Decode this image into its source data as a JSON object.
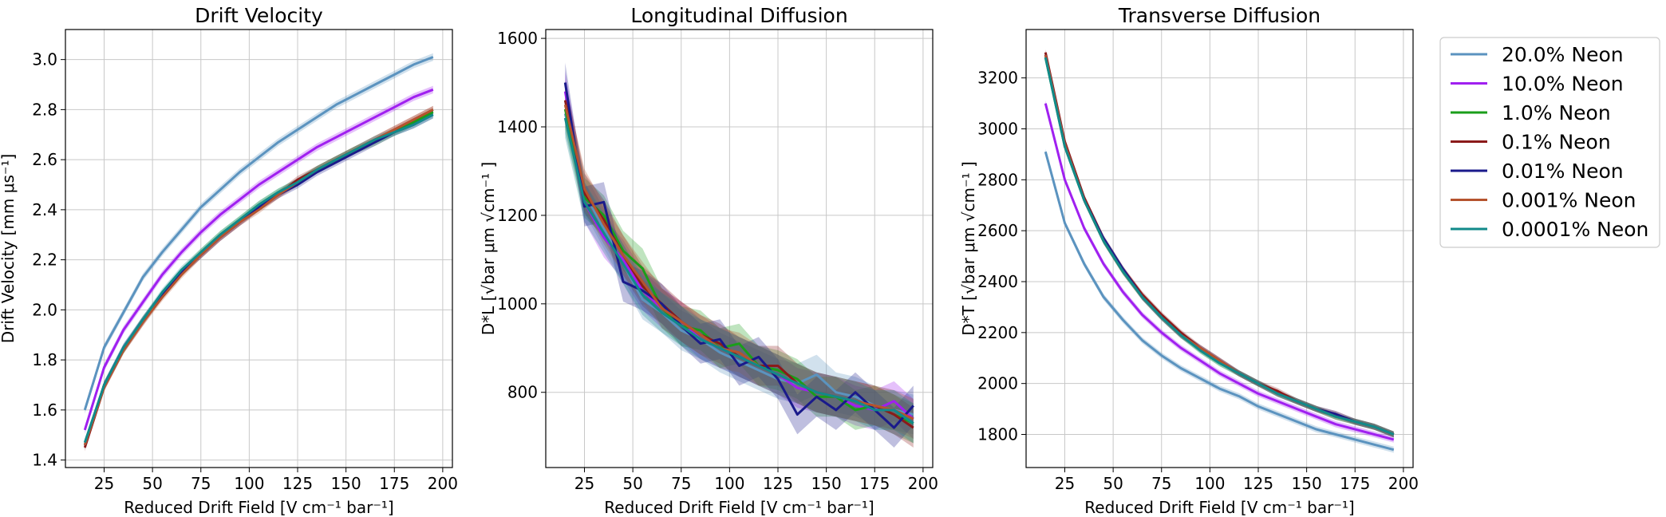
{
  "colors": {
    "20.0% Neon": "#5b93bf",
    "10.0% Neon": "#a020f0",
    "1.0% Neon": "#1a9e1a",
    "0.1% Neon": "#8b1a1a",
    "0.01% Neon": "#1a1a8b",
    "0.001% Neon": "#b5532e",
    "0.0001% Neon": "#118a8a"
  },
  "chart_data": [
    {
      "type": "line",
      "title": "Drift Velocity",
      "xlabel": "Reduced Drift Field [V cm⁻¹ bar⁻¹]",
      "ylabel": "Drift Velocity [mm μs⁻¹]",
      "xlim": [
        5,
        205
      ],
      "ylim": [
        1.37,
        3.12
      ],
      "xticks": [
        "25",
        "50",
        "75",
        "100",
        "125",
        "150",
        "175",
        "200"
      ],
      "yticks": [
        "1.4",
        "1.6",
        "1.8",
        "2.0",
        "2.2",
        "2.4",
        "2.6",
        "2.8",
        "3.0"
      ],
      "grid": true,
      "x": [
        15,
        25,
        35,
        45,
        55,
        65,
        75,
        85,
        95,
        105,
        115,
        125,
        135,
        145,
        155,
        165,
        175,
        185,
        195
      ],
      "series": [
        {
          "name": "20.0% Neon",
          "values": [
            1.6,
            1.85,
            1.99,
            2.13,
            2.23,
            2.32,
            2.41,
            2.48,
            2.55,
            2.61,
            2.67,
            2.72,
            2.77,
            2.82,
            2.86,
            2.9,
            2.94,
            2.98,
            3.01
          ]
        },
        {
          "name": "10.0% Neon",
          "values": [
            1.52,
            1.77,
            1.92,
            2.03,
            2.14,
            2.23,
            2.31,
            2.38,
            2.44,
            2.5,
            2.55,
            2.6,
            2.65,
            2.69,
            2.73,
            2.77,
            2.81,
            2.85,
            2.88
          ]
        },
        {
          "name": "1.0% Neon",
          "values": [
            1.46,
            1.7,
            1.84,
            1.96,
            2.06,
            2.15,
            2.23,
            2.3,
            2.36,
            2.42,
            2.47,
            2.51,
            2.56,
            2.6,
            2.64,
            2.67,
            2.71,
            2.75,
            2.79
          ]
        },
        {
          "name": "0.1% Neon",
          "values": [
            1.45,
            1.69,
            1.84,
            1.95,
            2.06,
            2.15,
            2.22,
            2.29,
            2.35,
            2.41,
            2.46,
            2.52,
            2.56,
            2.6,
            2.64,
            2.68,
            2.72,
            2.76,
            2.8
          ]
        },
        {
          "name": "0.01% Neon",
          "values": [
            1.46,
            1.7,
            1.85,
            1.96,
            2.06,
            2.15,
            2.22,
            2.29,
            2.35,
            2.41,
            2.46,
            2.5,
            2.55,
            2.59,
            2.63,
            2.67,
            2.71,
            2.74,
            2.78
          ]
        },
        {
          "name": "0.001% Neon",
          "values": [
            1.46,
            1.69,
            1.84,
            1.95,
            2.05,
            2.14,
            2.22,
            2.29,
            2.35,
            2.4,
            2.46,
            2.51,
            2.56,
            2.6,
            2.64,
            2.68,
            2.72,
            2.76,
            2.8
          ]
        },
        {
          "name": "0.0001% Neon",
          "values": [
            1.47,
            1.7,
            1.85,
            1.96,
            2.07,
            2.16,
            2.23,
            2.3,
            2.36,
            2.42,
            2.47,
            2.51,
            2.56,
            2.6,
            2.64,
            2.68,
            2.71,
            2.74,
            2.78
          ]
        }
      ]
    },
    {
      "type": "line",
      "title": "Longitudinal Diffusion",
      "xlabel": "Reduced Drift Field [V cm⁻¹ bar⁻¹]",
      "ylabel": "D*L [√bar μm √cm⁻¹ ]",
      "xlim": [
        5,
        205
      ],
      "ylim": [
        630,
        1620
      ],
      "xticks": [
        "25",
        "50",
        "75",
        "100",
        "125",
        "150",
        "175",
        "200"
      ],
      "yticks": [
        "800",
        "1000",
        "1200",
        "1400",
        "1600"
      ],
      "grid": true,
      "x": [
        15,
        25,
        35,
        45,
        55,
        65,
        75,
        85,
        95,
        105,
        115,
        125,
        135,
        145,
        155,
        165,
        175,
        185,
        195
      ],
      "series": [
        {
          "name": "20.0% Neon",
          "values": [
            1430,
            1250,
            1170,
            1090,
            1010,
            980,
            940,
            920,
            890,
            870,
            850,
            830,
            820,
            840,
            800,
            790,
            770,
            760,
            750
          ]
        },
        {
          "name": "10.0% Neon",
          "values": [
            1480,
            1230,
            1150,
            1100,
            1030,
            990,
            960,
            920,
            900,
            880,
            860,
            840,
            810,
            800,
            790,
            770,
            760,
            780,
            740
          ]
        },
        {
          "name": "1.0% Neon",
          "values": [
            1440,
            1240,
            1200,
            1120,
            1080,
            990,
            950,
            940,
            900,
            910,
            860,
            850,
            830,
            790,
            790,
            760,
            770,
            750,
            730
          ]
        },
        {
          "name": "0.1% Neon",
          "values": [
            1460,
            1250,
            1190,
            1110,
            1040,
            1000,
            960,
            930,
            910,
            880,
            860,
            860,
            820,
            800,
            790,
            780,
            770,
            750,
            720
          ]
        },
        {
          "name": "0.01% Neon",
          "values": [
            1500,
            1220,
            1230,
            1050,
            1030,
            1000,
            950,
            910,
            920,
            860,
            880,
            830,
            750,
            790,
            760,
            800,
            760,
            720,
            770
          ]
        },
        {
          "name": "0.001% Neon",
          "values": [
            1450,
            1260,
            1180,
            1110,
            1050,
            990,
            960,
            930,
            900,
            890,
            860,
            840,
            820,
            800,
            790,
            780,
            770,
            760,
            740
          ]
        },
        {
          "name": "0.0001% Neon",
          "values": [
            1420,
            1230,
            1160,
            1090,
            1020,
            980,
            950,
            920,
            900,
            880,
            860,
            840,
            820,
            800,
            790,
            780,
            760,
            760,
            730
          ]
        }
      ]
    },
    {
      "type": "line",
      "title": "Transverse Diffusion",
      "xlabel": "Reduced Drift Field [V cm⁻¹ bar⁻¹]",
      "ylabel": "D*T [√bar μm √cm⁻¹ ]",
      "xlim": [
        5,
        205
      ],
      "ylim": [
        1670,
        3390
      ],
      "xticks": [
        "25",
        "50",
        "75",
        "100",
        "125",
        "150",
        "175",
        "200"
      ],
      "yticks": [
        "1800",
        "2000",
        "2200",
        "2400",
        "2600",
        "2800",
        "3000",
        "3200"
      ],
      "grid": true,
      "x": [
        15,
        25,
        35,
        45,
        55,
        65,
        75,
        85,
        95,
        105,
        115,
        125,
        135,
        145,
        155,
        165,
        175,
        185,
        195
      ],
      "series": [
        {
          "name": "20.0% Neon",
          "values": [
            2910,
            2630,
            2470,
            2340,
            2250,
            2170,
            2110,
            2060,
            2020,
            1980,
            1950,
            1910,
            1880,
            1850,
            1820,
            1800,
            1780,
            1760,
            1740
          ]
        },
        {
          "name": "10.0% Neon",
          "values": [
            3100,
            2800,
            2610,
            2470,
            2360,
            2270,
            2200,
            2140,
            2090,
            2040,
            2000,
            1960,
            1930,
            1900,
            1870,
            1840,
            1820,
            1800,
            1780
          ]
        },
        {
          "name": "1.0% Neon",
          "values": [
            3280,
            2930,
            2720,
            2560,
            2440,
            2340,
            2260,
            2190,
            2130,
            2080,
            2040,
            2000,
            1960,
            1930,
            1900,
            1870,
            1850,
            1830,
            1800
          ]
        },
        {
          "name": "0.1% Neon",
          "values": [
            3300,
            2950,
            2730,
            2570,
            2450,
            2350,
            2270,
            2200,
            2140,
            2090,
            2040,
            2000,
            1970,
            1930,
            1900,
            1880,
            1850,
            1830,
            1800
          ]
        },
        {
          "name": "0.01% Neon",
          "values": [
            3290,
            2940,
            2720,
            2570,
            2450,
            2340,
            2260,
            2190,
            2140,
            2090,
            2040,
            2000,
            1960,
            1930,
            1900,
            1880,
            1850,
            1830,
            1800
          ]
        },
        {
          "name": "0.001% Neon",
          "values": [
            3290,
            2940,
            2720,
            2560,
            2440,
            2340,
            2260,
            2190,
            2140,
            2090,
            2040,
            2000,
            1960,
            1930,
            1900,
            1870,
            1850,
            1830,
            1800
          ]
        },
        {
          "name": "0.0001% Neon",
          "values": [
            3280,
            2930,
            2720,
            2560,
            2440,
            2340,
            2260,
            2190,
            2130,
            2080,
            2040,
            2000,
            1960,
            1930,
            1900,
            1870,
            1850,
            1830,
            1800
          ]
        }
      ]
    }
  ],
  "legend": {
    "placement": "outside-right",
    "entries": [
      "20.0% Neon",
      "10.0% Neon",
      "1.0% Neon",
      "0.1% Neon",
      "0.01% Neon",
      "0.001% Neon",
      "0.0001% Neon"
    ]
  }
}
